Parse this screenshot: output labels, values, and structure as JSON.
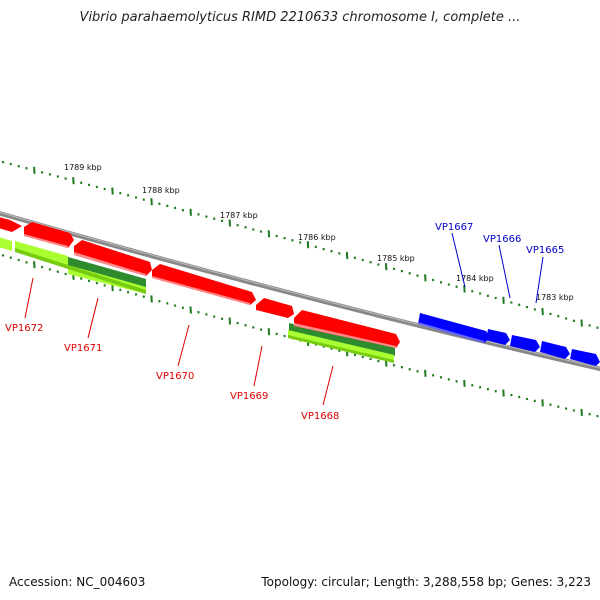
{
  "title": "Vibrio parahaemolyticus RIMD 2210633 chromosome I, complete ...",
  "footer": {
    "accession": "Accession: NC_004603",
    "summary": "Topology: circular; Length: 3,288,558 bp; Genes: 3,223"
  },
  "colors": {
    "backbone": "#7a7a7a",
    "ticks": "#1e7a1e",
    "gene_red": "#ff0000",
    "gene_blue": "#0000ff",
    "feature_dark_green": "#2e8b2e",
    "feature_light_green": "#aaff33",
    "label_red": "#dd0000",
    "label_blue": "#0000cc"
  },
  "kbp_labels": [
    "1789 kbp",
    "1788 kbp",
    "1787 kbp",
    "1786 kbp",
    "1785 kbp",
    "1784 kbp",
    "1783 kbp"
  ],
  "genes": [
    {
      "name": "VP1672",
      "strand": "red"
    },
    {
      "name": "VP1671",
      "strand": "red"
    },
    {
      "name": "VP1670",
      "strand": "red"
    },
    {
      "name": "VP1669",
      "strand": "red"
    },
    {
      "name": "VP1668",
      "strand": "red"
    },
    {
      "name": "VP1667",
      "strand": "blue"
    },
    {
      "name": "VP1666",
      "strand": "blue"
    },
    {
      "name": "VP1665",
      "strand": "blue"
    }
  ]
}
